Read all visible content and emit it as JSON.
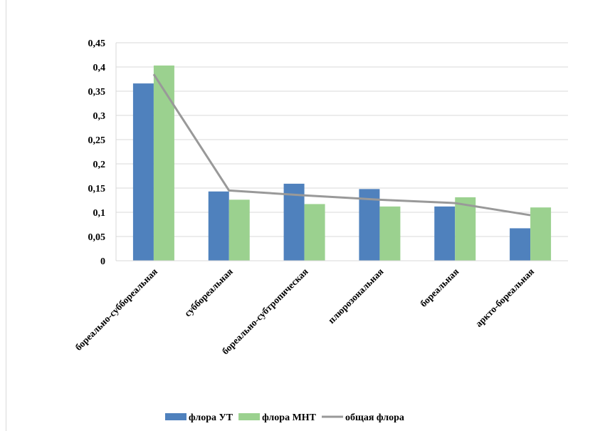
{
  "chart_data": {
    "type": "bar",
    "categories": [
      "бореально-суббореальная",
      "суббореальная",
      "бореально-субтропическая",
      "плюрозональная",
      "бореальная",
      "аркто-бореальная"
    ],
    "series": [
      {
        "name": "флора УТ",
        "type": "bar",
        "color": "#4f81bd",
        "values": [
          0.366,
          0.143,
          0.159,
          0.148,
          0.112,
          0.067
        ]
      },
      {
        "name": "флора МНТ",
        "type": "bar",
        "color": "#9bd18f",
        "values": [
          0.403,
          0.126,
          0.117,
          0.112,
          0.131,
          0.11
        ]
      },
      {
        "name": "общая флора",
        "type": "line",
        "color": "#999999",
        "values": [
          0.385,
          0.145,
          0.135,
          0.126,
          0.119,
          0.094
        ]
      }
    ],
    "yticks": [
      "0",
      "0,05",
      "0,1",
      "0,15",
      "0,2",
      "0,25",
      "0,3",
      "0,35",
      "0,4",
      "0,45"
    ],
    "ylim": [
      0,
      0.45
    ],
    "grid": true,
    "legend_position": "bottom",
    "title": "",
    "xlabel": "",
    "ylabel": ""
  }
}
